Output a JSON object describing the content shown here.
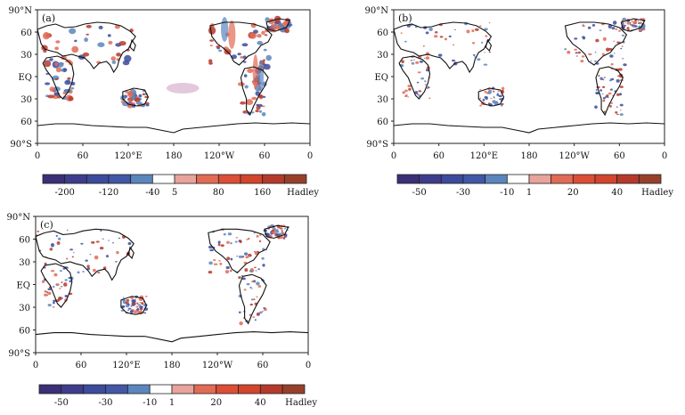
{
  "panels": [
    {
      "id": "a",
      "label": "(a)",
      "y_ticks": [
        "90°N",
        "60",
        "30",
        "EQ",
        "30",
        "60",
        "90°S"
      ],
      "x_ticks": [
        "0",
        "60",
        "120°E",
        "180",
        "120°W",
        "60",
        "0"
      ],
      "colorbar": {
        "colors": [
          "#3b2f78",
          "#3e3d8c",
          "#3c4b9c",
          "#4257a6",
          "#5a86bd",
          "#ffffff",
          "#e8a39d",
          "#e26b55",
          "#dc4e35",
          "#d3452c",
          "#b53a2b",
          "#96402c"
        ],
        "tick_labels": [
          "-200",
          "-120",
          "-40",
          "5",
          "80",
          "160"
        ],
        "unit": "Hadley"
      }
    },
    {
      "id": "b",
      "label": "(b)",
      "y_ticks": [
        "90°N",
        "60",
        "30",
        "EQ",
        "30",
        "60",
        "90°S"
      ],
      "x_ticks": [
        "0",
        "60",
        "120°E",
        "180",
        "120°W",
        "60",
        "0"
      ],
      "colorbar": {
        "colors": [
          "#3b2f78",
          "#3e3d8c",
          "#3c4b9c",
          "#4257a6",
          "#5a86bd",
          "#ffffff",
          "#e8a39d",
          "#e26b55",
          "#dc4e35",
          "#d3452c",
          "#b53a2b",
          "#96402c"
        ],
        "tick_labels": [
          "-50",
          "-30",
          "-10",
          "1",
          "20",
          "40"
        ],
        "unit": "Hadley"
      }
    },
    {
      "id": "c",
      "label": "(c)",
      "y_ticks": [
        "90°N",
        "60",
        "30",
        "EQ",
        "30",
        "60",
        "90°S"
      ],
      "x_ticks": [
        "0",
        "60",
        "120°E",
        "180",
        "120°W",
        "60",
        "0"
      ],
      "colorbar": {
        "colors": [
          "#3b2f78",
          "#3e3d8c",
          "#3c4b9c",
          "#4257a6",
          "#5a86bd",
          "#ffffff",
          "#e8a39d",
          "#e26b55",
          "#dc4e35",
          "#d3452c",
          "#b53a2b",
          "#96402c"
        ],
        "tick_labels": [
          "-50",
          "-30",
          "-10",
          "1",
          "20",
          "40"
        ],
        "unit": "Hadley"
      }
    }
  ],
  "colors": {
    "frame": "#222222",
    "coast": "#111111",
    "blue": "#5a86bd",
    "red": "#e26b55",
    "darkred": "#b53a2b",
    "darkblue": "#3c4b9c"
  }
}
